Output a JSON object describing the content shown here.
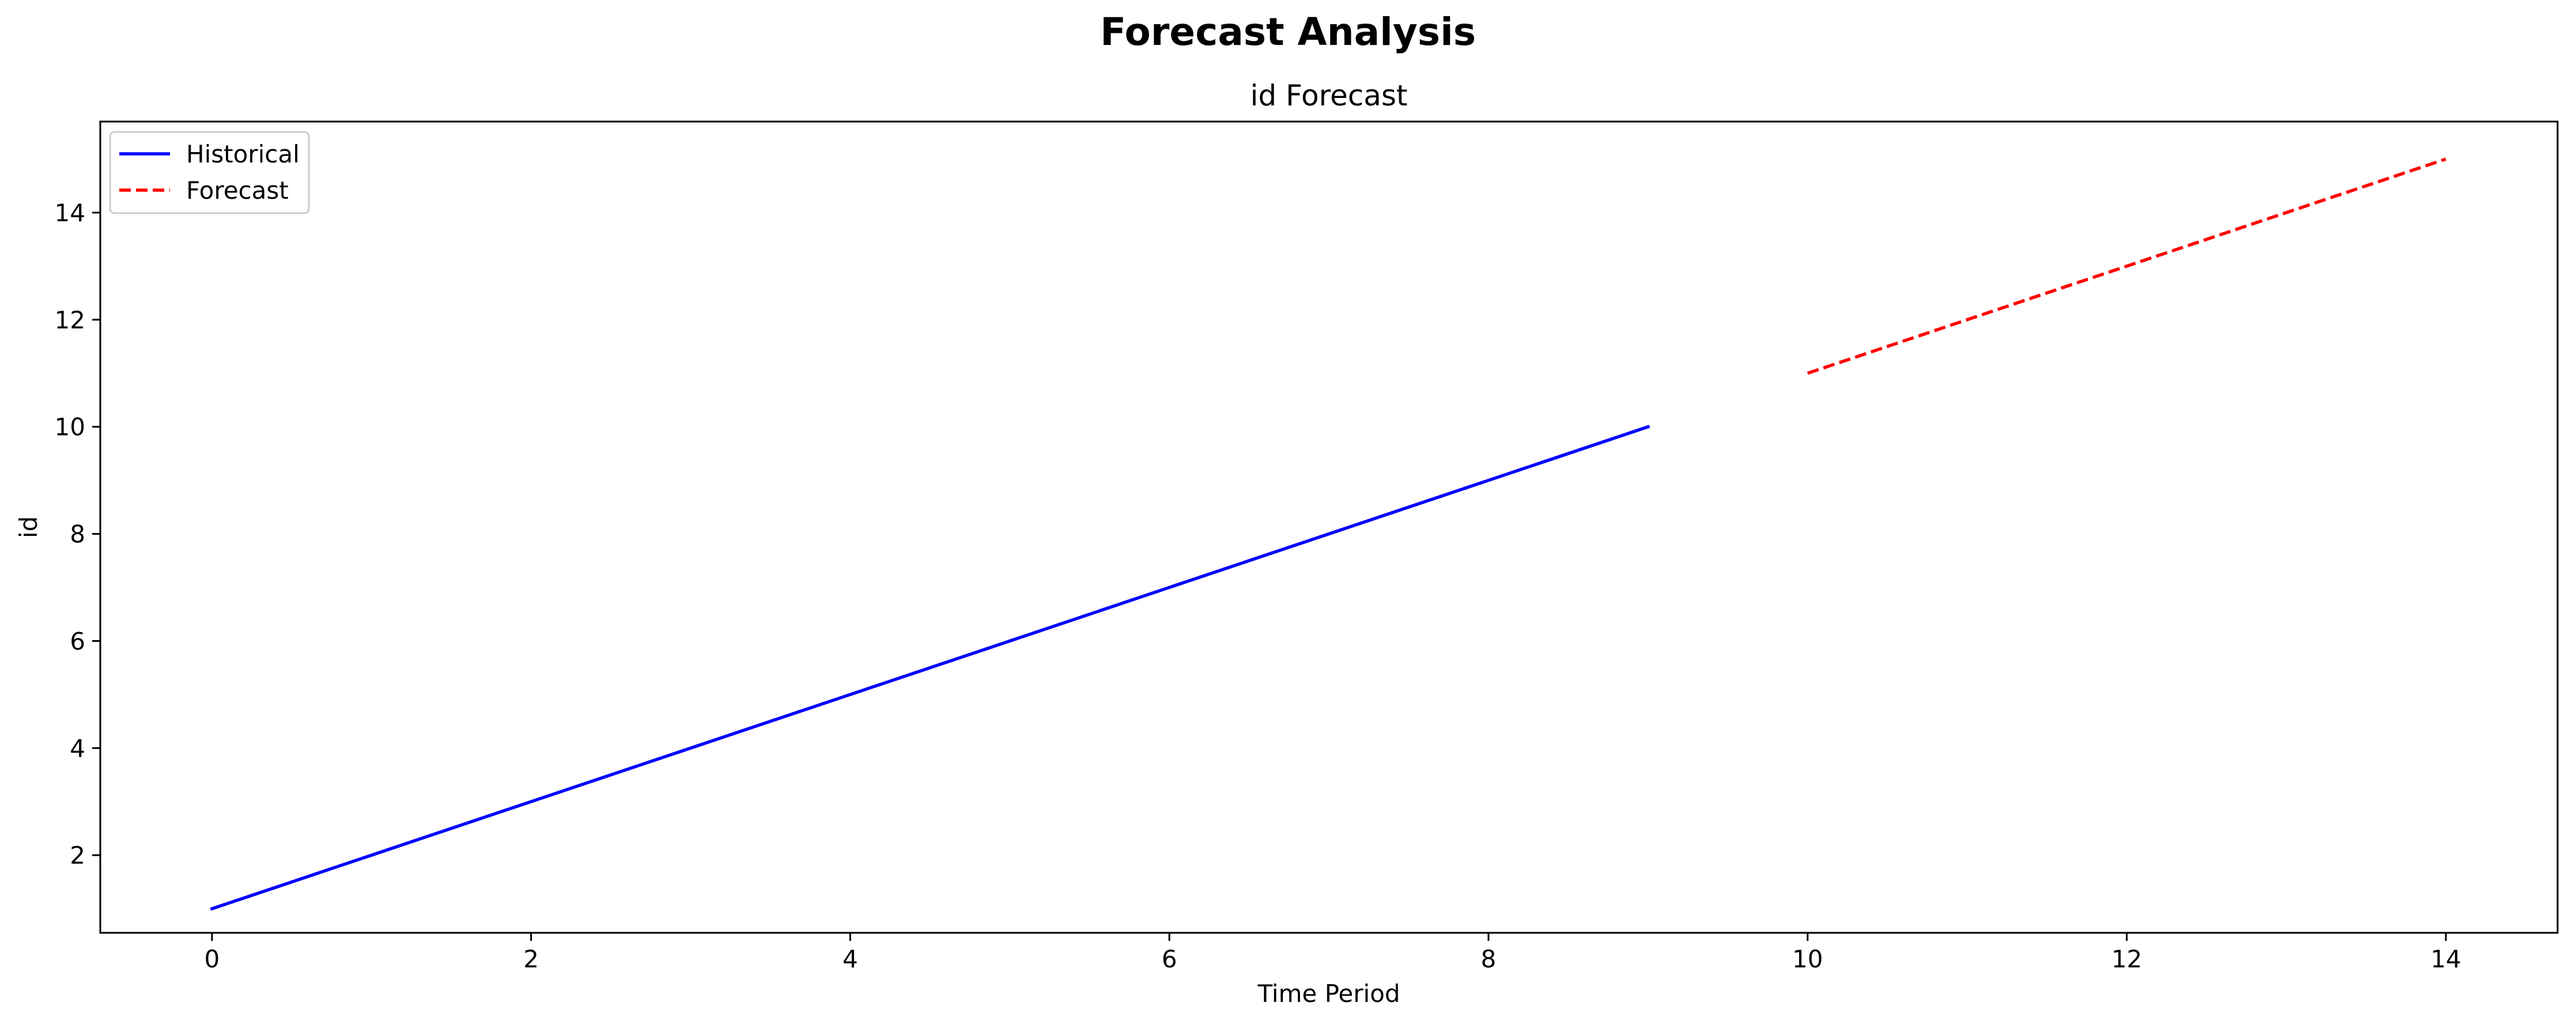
{
  "chart_data": {
    "type": "line",
    "suptitle": "Forecast Analysis",
    "title": "id Forecast",
    "xlabel": "Time Period",
    "ylabel": "id",
    "xlim": [
      -0.7,
      14.7
    ],
    "ylim": [
      0.55,
      15.7
    ],
    "xticks": [
      0,
      2,
      4,
      6,
      8,
      10,
      12,
      14
    ],
    "yticks": [
      2,
      4,
      6,
      8,
      10,
      12,
      14
    ],
    "grid": false,
    "legend_position": "upper left",
    "series": [
      {
        "name": "Historical",
        "style": "solid",
        "color": "#0000ff",
        "x": [
          0,
          1,
          2,
          3,
          4,
          5,
          6,
          7,
          8,
          9
        ],
        "y": [
          1,
          2,
          3,
          4,
          5,
          6,
          7,
          8,
          9,
          10
        ]
      },
      {
        "name": "Forecast",
        "style": "dashed",
        "color": "#ff0000",
        "x": [
          10,
          11,
          12,
          13,
          14
        ],
        "y": [
          11,
          12,
          13,
          14,
          15
        ]
      }
    ]
  }
}
